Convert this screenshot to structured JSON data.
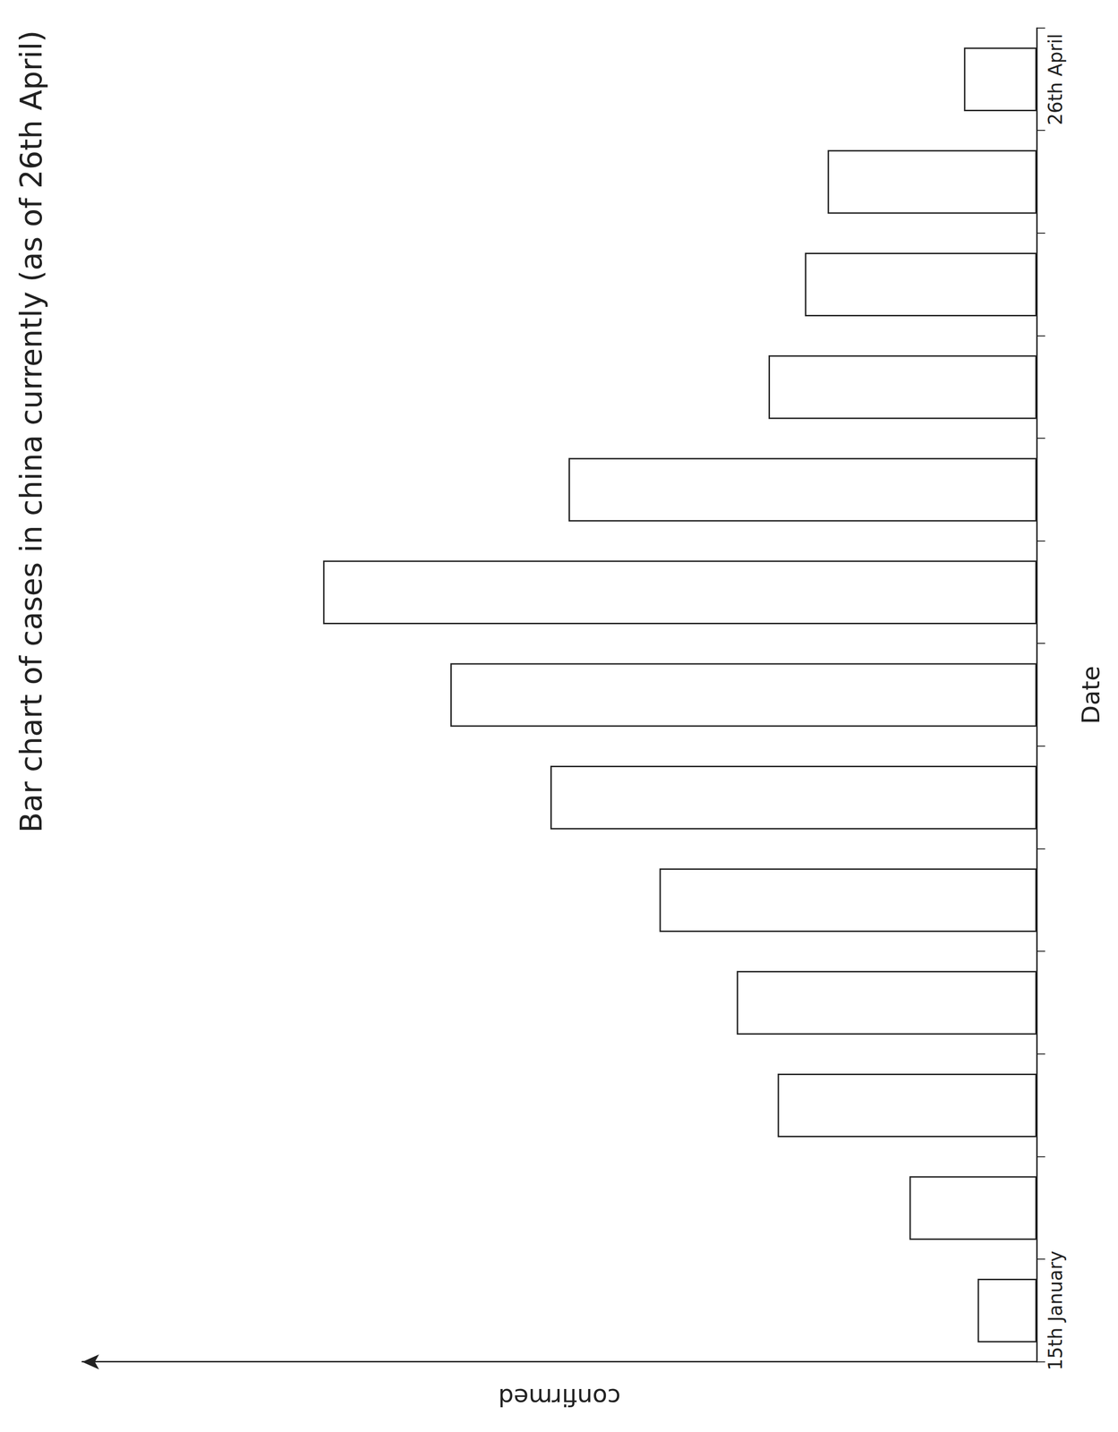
{
  "chart_data": {
    "type": "bar",
    "title": "Bar chart of cases in china currently (as of 26th April)",
    "x_label": "Date",
    "y_label": "confirmed",
    "categories": [
      "15th January",
      null,
      null,
      null,
      null,
      null,
      null,
      null,
      null,
      null,
      null,
      null,
      "26th April"
    ],
    "values": [
      65,
      140,
      285,
      330,
      415,
      535,
      645,
      785,
      515,
      295,
      255,
      230,
      80
    ],
    "color": "#ffffff",
    "ylim": [
      0,
      1050
    ],
    "tick_labels": "x",
    "grid": false
  }
}
